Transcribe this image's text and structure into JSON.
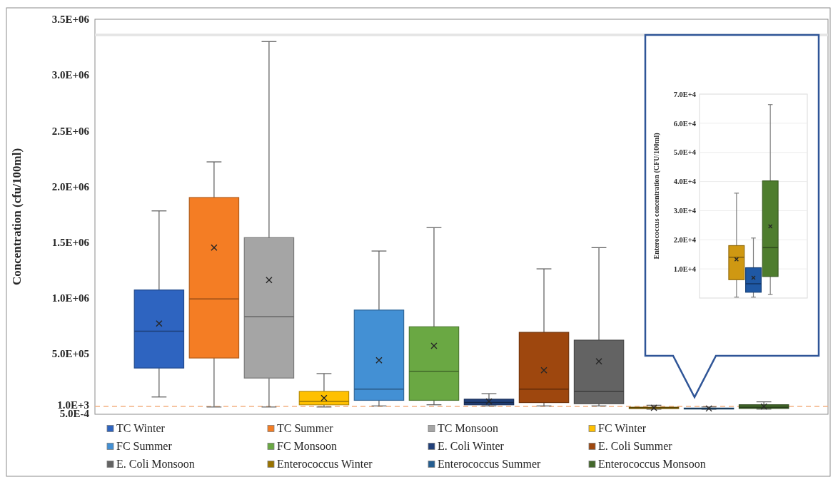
{
  "chart_data": [
    {
      "type": "box",
      "categories": [
        null
      ],
      "ylabel": "Concentration (cfu/100ml)",
      "ylim": [
        -45000,
        3500000
      ],
      "yticks": [
        {
          "value": 3500000,
          "label": "3.5E+06"
        },
        {
          "value": 3000000,
          "label": "3.0E+06"
        },
        {
          "value": 2500000,
          "label": "2.5E+06"
        },
        {
          "value": 2000000,
          "label": "2.0E+06"
        },
        {
          "value": 1500000,
          "label": "1.5E+06"
        },
        {
          "value": 1000000,
          "label": "1.0E+06"
        },
        {
          "value": 500000,
          "label": "5.0E+05"
        },
        {
          "value": 1000,
          "label": "1.0E+3"
        },
        {
          "value": 0.0005,
          "label": "5.0E-4"
        }
      ],
      "tick_labels": "y",
      "legend": "bottom",
      "ref_lines": [
        {
          "axis": "y",
          "value": 3360000,
          "color": "#e4e4e4",
          "line_style": "solid"
        },
        {
          "axis": "y",
          "value": 25000,
          "color": "#f4b183",
          "line_style": "dashed"
        }
      ],
      "series": [
        {
          "name": "TC Winter",
          "color": "#2e64c0",
          "boxes": [
            {
              "low": 110000,
              "q1": 370000,
              "median": 700000,
              "q3": 1070000,
              "high": 1780000,
              "mean": 770000
            }
          ]
        },
        {
          "name": "TC Summer",
          "color": "#f47d24",
          "boxes": [
            {
              "low": 20000,
              "q1": 460000,
              "median": 990000,
              "q3": 1900000,
              "high": 2220000,
              "mean": 1450000
            }
          ]
        },
        {
          "name": "TC Monsoon",
          "color": "#a5a5a5",
          "boxes": [
            {
              "low": 20000,
              "q1": 280000,
              "median": 830000,
              "q3": 1540000,
              "high": 3300000,
              "mean": 1160000
            }
          ]
        },
        {
          "name": "FC Winter",
          "color": "#ffc000",
          "boxes": [
            {
              "low": 20000,
              "q1": 40000,
              "median": 70000,
              "q3": 160000,
              "high": 320000,
              "mean": 100000
            }
          ]
        },
        {
          "name": "FC Summer",
          "color": "#4390d4",
          "boxes": [
            {
              "low": 30000,
              "q1": 80000,
              "median": 180000,
              "q3": 890000,
              "high": 1420000,
              "mean": 440000
            }
          ]
        },
        {
          "name": "FC Monsoon",
          "color": "#6aa843",
          "boxes": [
            {
              "low": 40000,
              "q1": 80000,
              "median": 340000,
              "q3": 740000,
              "high": 1630000,
              "mean": 570000
            }
          ]
        },
        {
          "name": "E. Coli Winter",
          "color": "#21407a",
          "boxes": [
            {
              "low": 30000,
              "q1": 40000,
              "median": 60000,
              "q3": 90000,
              "high": 140000,
              "mean": 70000
            }
          ]
        },
        {
          "name": "E. Coli Summer",
          "color": "#9e470e",
          "boxes": [
            {
              "low": 30000,
              "q1": 60000,
              "median": 180000,
              "q3": 690000,
              "high": 1260000,
              "mean": 350000
            }
          ]
        },
        {
          "name": "E. Coli Monsoon",
          "color": "#636363",
          "boxes": [
            {
              "low": 30000,
              "q1": 50000,
              "median": 160000,
              "q3": 620000,
              "high": 1450000,
              "mean": 430000
            }
          ]
        },
        {
          "name": "Enterococcus Winter",
          "color": "#997300",
          "boxes": [
            {
              "low": 300,
              "q1": 6300,
              "median": 14000,
              "q3": 18000,
              "high": 36000,
              "mean": 13300
            }
          ]
        },
        {
          "name": "Enterococcus Summer",
          "color": "#255e91",
          "boxes": [
            {
              "low": 300,
              "q1": 2000,
              "median": 4900,
              "q3": 10400,
              "high": 20600,
              "mean": 7000
            }
          ]
        },
        {
          "name": "Enterococcus Monsoon",
          "color": "#43682b",
          "boxes": [
            {
              "low": 1200,
              "q1": 7400,
              "median": 17300,
              "q3": 40200,
              "high": 66400,
              "mean": 24600
            }
          ]
        }
      ]
    },
    {
      "type": "box",
      "categories": [
        null
      ],
      "ylabel": "Enterococcus concentration (CFU/100ml)",
      "ylim": [
        0,
        70000
      ],
      "yticks": [
        {
          "value": 10000,
          "label": "1.0E+4"
        },
        {
          "value": 20000,
          "label": "2.0E+4"
        },
        {
          "value": 30000,
          "label": "3.0E+4"
        },
        {
          "value": 40000,
          "label": "4.0E+4"
        },
        {
          "value": 50000,
          "label": "5.0E+4"
        },
        {
          "value": 60000,
          "label": "6.0E+4"
        },
        {
          "value": 70000,
          "label": "7.0E+4"
        }
      ],
      "tick_labels": "y",
      "grid": "y",
      "series": [
        {
          "color": "#cf9812",
          "boxes": [
            {
              "low": 300,
              "q1": 6300,
              "median": 14000,
              "q3": 18000,
              "high": 36000,
              "mean": 13300
            }
          ]
        },
        {
          "color": "#1f58a4",
          "boxes": [
            {
              "low": 300,
              "q1": 2000,
              "median": 4900,
              "q3": 10400,
              "high": 20600,
              "mean": 7000
            }
          ]
        },
        {
          "color": "#4e7d2e",
          "boxes": [
            {
              "low": 1200,
              "q1": 7400,
              "median": 17300,
              "q3": 40200,
              "high": 66400,
              "mean": 24600
            }
          ]
        }
      ]
    }
  ]
}
